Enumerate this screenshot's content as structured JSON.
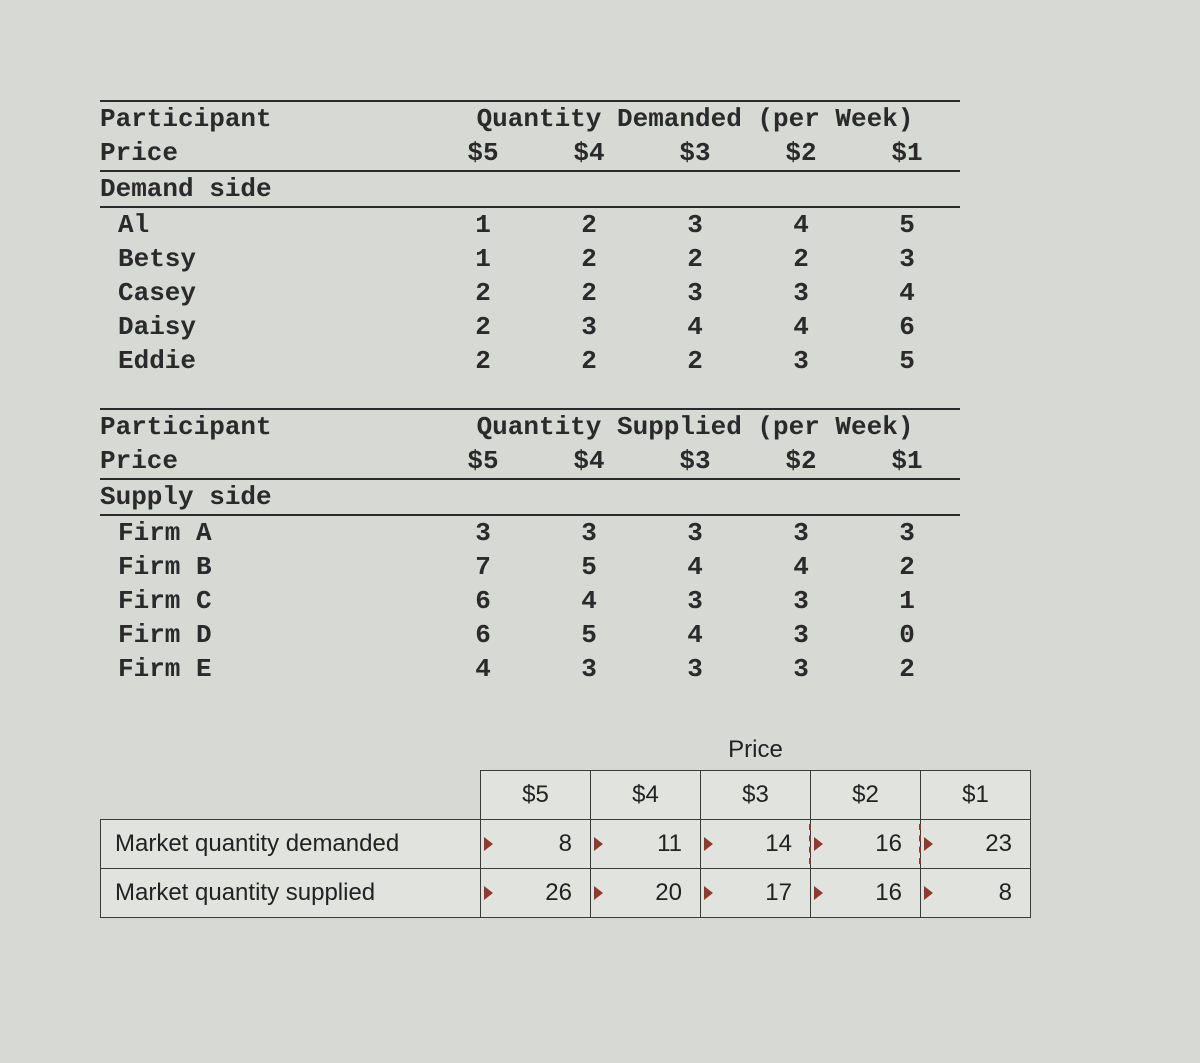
{
  "colors": {
    "page_bg": "#d7d9d5",
    "text": "#2a2a2a",
    "rule": "#2a2a2a",
    "cell_bg": "#e1e3df",
    "accent": "#8a3d2e"
  },
  "typography": {
    "mono_family": "Courier New",
    "mono_size_pt": 20,
    "sans_family": "Arial",
    "sans_size_pt": 18
  },
  "prices": [
    "$5",
    "$4",
    "$3",
    "$2",
    "$1"
  ],
  "demand": {
    "header_left": "Participant",
    "header_span": "Quantity Demanded (per Week)",
    "price_label": "Price",
    "section_label": "Demand side",
    "rows": [
      {
        "name": "Al",
        "vals": [
          1,
          2,
          3,
          4,
          5
        ]
      },
      {
        "name": "Betsy",
        "vals": [
          1,
          2,
          2,
          2,
          3
        ]
      },
      {
        "name": "Casey",
        "vals": [
          2,
          2,
          3,
          3,
          4
        ]
      },
      {
        "name": "Daisy",
        "vals": [
          2,
          3,
          4,
          4,
          6
        ]
      },
      {
        "name": "Eddie",
        "vals": [
          2,
          2,
          2,
          3,
          5
        ]
      }
    ]
  },
  "supply": {
    "header_left": "Participant",
    "header_span": "Quantity Supplied (per Week)",
    "price_label": "Price",
    "section_label": "Supply side",
    "rows": [
      {
        "name": "Firm A",
        "vals": [
          3,
          3,
          3,
          3,
          3
        ]
      },
      {
        "name": "Firm B",
        "vals": [
          7,
          5,
          4,
          4,
          2
        ]
      },
      {
        "name": "Firm C",
        "vals": [
          6,
          4,
          3,
          3,
          1
        ]
      },
      {
        "name": "Firm D",
        "vals": [
          6,
          5,
          4,
          3,
          0
        ]
      },
      {
        "name": "Firm E",
        "vals": [
          4,
          3,
          3,
          3,
          2
        ]
      }
    ]
  },
  "market": {
    "price_header": "Price",
    "col_labels": [
      "$5",
      "$4",
      "$3",
      "$2",
      "$1"
    ],
    "rows": [
      {
        "label": "Market quantity demanded",
        "cells": [
          {
            "val": 8,
            "marker": "tri"
          },
          {
            "val": 11,
            "marker": "tri"
          },
          {
            "val": 14,
            "marker": "tri",
            "dashed_right": true
          },
          {
            "val": 16,
            "marker": "tri",
            "dashed_right": true
          },
          {
            "val": 23,
            "marker": "tri"
          }
        ]
      },
      {
        "label": "Market quantity supplied",
        "cells": [
          {
            "val": 26,
            "marker": "tri"
          },
          {
            "val": 20,
            "marker": "tri"
          },
          {
            "val": 17,
            "marker": "tri"
          },
          {
            "val": 16,
            "marker": "tri"
          },
          {
            "val": 8,
            "marker": "tri"
          }
        ]
      }
    ]
  }
}
